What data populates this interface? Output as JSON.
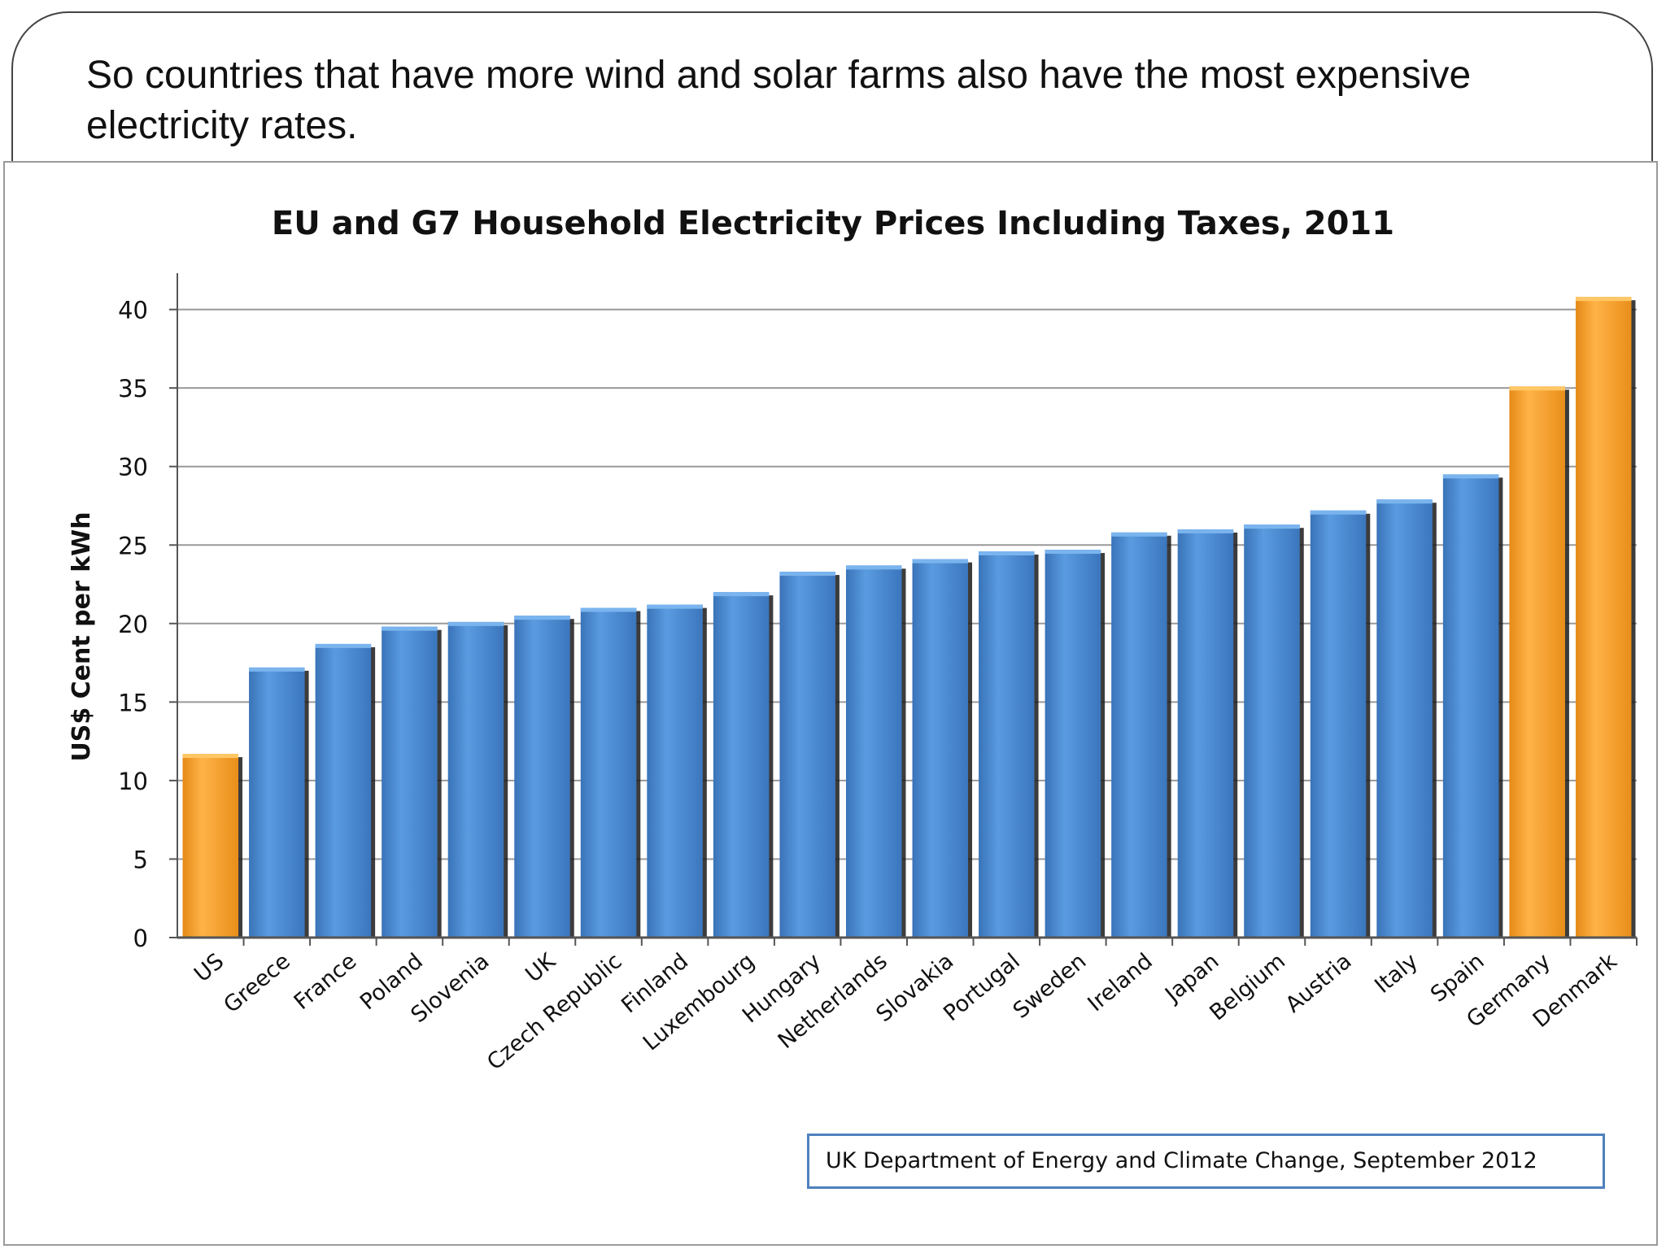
{
  "slide": {
    "caption": "So countries that have more wind and solar farms also have the most expensive electricity  rates."
  },
  "source_note": "UK Department of Energy and Climate Change, September 2012",
  "colors": {
    "highlight": "#f5a231",
    "default": "#4a8ad4",
    "gridline": "#999999"
  },
  "chart_data": {
    "type": "bar",
    "title": "EU and G7 Household Electricity Prices Including Taxes, 2011",
    "xlabel": "",
    "ylabel": "US$ Cent per kWh",
    "ylim": [
      0,
      42
    ],
    "yticks": [
      0,
      5,
      10,
      15,
      20,
      25,
      30,
      35,
      40
    ],
    "grid": true,
    "categories": [
      "US",
      "Greece",
      "France",
      "Poland",
      "Slovenia",
      "UK",
      "Czech Republic",
      "Finland",
      "Luxembourg",
      "Hungary",
      "Netherlands",
      "Slovakia",
      "Portugal",
      "Sweden",
      "Ireland",
      "Japan",
      "Belgium",
      "Austria",
      "Italy",
      "Spain",
      "Germany",
      "Denmark"
    ],
    "values": [
      11.7,
      17.2,
      18.7,
      19.8,
      20.1,
      20.5,
      21.0,
      21.2,
      22.0,
      23.3,
      23.7,
      24.1,
      24.6,
      24.7,
      25.8,
      26.0,
      26.3,
      27.2,
      27.9,
      29.5,
      35.1,
      40.8
    ],
    "highlighted": [
      "US",
      "Germany",
      "Denmark"
    ]
  }
}
